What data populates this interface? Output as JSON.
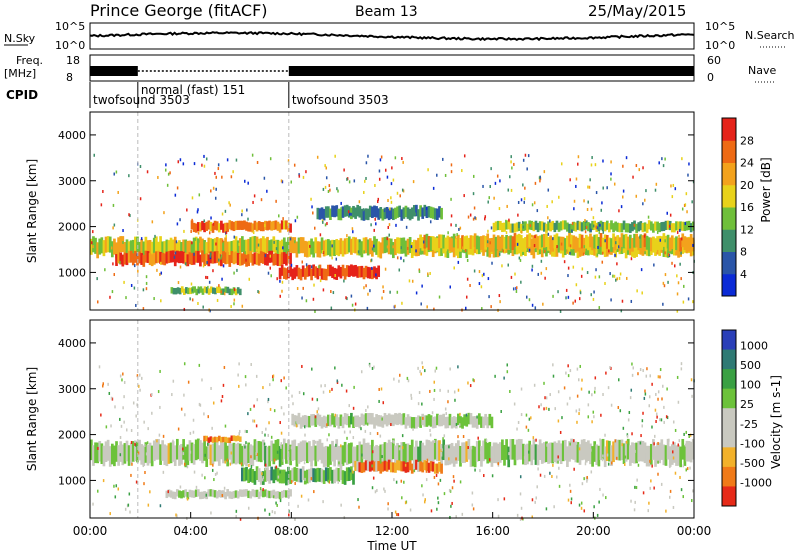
{
  "header": {
    "station": "Prince George (fitACF)",
    "beam": "Beam 13",
    "date": "25/May/2015"
  },
  "top_panels": {
    "nsky_label": "N.Sky",
    "nsearch_label": "N.Search",
    "freq_label_1": "Freq.",
    "freq_label_2": "[MHz]",
    "nave_label": "Nave",
    "cpid_label": "CPID",
    "noise_ticks_left": [
      "10^5",
      "10^0"
    ],
    "noise_ticks_right": [
      "10^5",
      "10^0"
    ],
    "freq_ticks": [
      "18",
      "8"
    ],
    "nave_ticks": [
      "60",
      "0"
    ]
  },
  "cpid_segments": [
    {
      "label": "twofsound 3503",
      "start_hour": 0,
      "end_hour": 1.9
    },
    {
      "label": "normal (fast) 151",
      "start_hour": 1.9,
      "end_hour": 7.9
    },
    {
      "label": "twofsound 3503",
      "start_hour": 7.9,
      "end_hour": 24
    }
  ],
  "x_axis": {
    "label": "Time UT",
    "ticks": [
      "00:00",
      "04:00",
      "08:00",
      "12:00",
      "16:00",
      "20:00",
      "00:00"
    ],
    "range_hours": [
      0,
      24
    ]
  },
  "chart_data": [
    {
      "type": "heatmap",
      "title": "",
      "xlabel": "Time UT",
      "ylabel": "Slant Range [km]",
      "ylim": [
        180,
        4500
      ],
      "yticks": [
        "1000",
        "2000",
        "3000",
        "4000"
      ],
      "colorbar_label": "Power [dB]",
      "colorbar_ticks": [
        "4",
        "8",
        "12",
        "16",
        "20",
        "24",
        "28"
      ],
      "colorbar_colors": [
        "#0b2bd6",
        "#2a55a8",
        "#3f8f6a",
        "#6fbf3a",
        "#e8d21a",
        "#f3a21c",
        "#ee6a14",
        "#e5231a"
      ],
      "bands": [
        {
          "start_hour": 0.0,
          "end_hour": 24.0,
          "range_center_km": 1550,
          "width_km": 350,
          "level": 0.55
        },
        {
          "start_hour": 1.0,
          "end_hour": 8.0,
          "range_center_km": 1300,
          "width_km": 260,
          "level": 0.85
        },
        {
          "start_hour": 4.0,
          "end_hour": 8.0,
          "range_center_km": 2000,
          "width_km": 200,
          "level": 0.75
        },
        {
          "start_hour": 3.2,
          "end_hour": 6.0,
          "range_center_km": 600,
          "width_km": 140,
          "level": 0.45
        },
        {
          "start_hour": 7.5,
          "end_hour": 11.5,
          "range_center_km": 1000,
          "width_km": 250,
          "level": 0.95
        },
        {
          "start_hour": 9.0,
          "end_hour": 14.0,
          "range_center_km": 2300,
          "width_km": 250,
          "level": 0.3
        },
        {
          "start_hour": 13.0,
          "end_hour": 24.0,
          "range_center_km": 1650,
          "width_km": 300,
          "level": 0.6
        },
        {
          "start_hour": 16.0,
          "end_hour": 24.0,
          "range_center_km": 2000,
          "width_km": 200,
          "level": 0.45
        }
      ]
    },
    {
      "type": "heatmap",
      "title": "",
      "xlabel": "Time UT",
      "ylabel": "Slant Range [km]",
      "ylim": [
        180,
        4500
      ],
      "yticks": [
        "1000",
        "2000",
        "3000",
        "4000"
      ],
      "colorbar_label": "Velocity [m s-1]",
      "colorbar_ticks": [
        "1000",
        "500",
        "100",
        "25",
        "-25",
        "-100",
        "-500",
        "-1000"
      ],
      "colorbar_colors": [
        "#2a3fb8",
        "#2f7a74",
        "#3aa043",
        "#6cc23a",
        "#c9c9c0",
        "#c9c9c0",
        "#f2b12a",
        "#f07a18",
        "#e62a18"
      ],
      "bands": [
        {
          "start_hour": 0.0,
          "end_hour": 24.0,
          "range_center_km": 1600,
          "width_km": 450,
          "level": 0.5
        },
        {
          "start_hour": 4.5,
          "end_hour": 6.0,
          "range_center_km": 1900,
          "width_km": 120,
          "level": 0.85
        },
        {
          "start_hour": 6.0,
          "end_hour": 10.5,
          "range_center_km": 1100,
          "width_km": 300,
          "level": 0.3
        },
        {
          "start_hour": 10.5,
          "end_hour": 14.0,
          "range_center_km": 1300,
          "width_km": 220,
          "level": 0.8
        },
        {
          "start_hour": 3.0,
          "end_hour": 8.0,
          "range_center_km": 700,
          "width_km": 160,
          "level": 0.5
        },
        {
          "start_hour": 8.0,
          "end_hour": 16.0,
          "range_center_km": 2300,
          "width_km": 250,
          "level": 0.5
        }
      ]
    }
  ]
}
